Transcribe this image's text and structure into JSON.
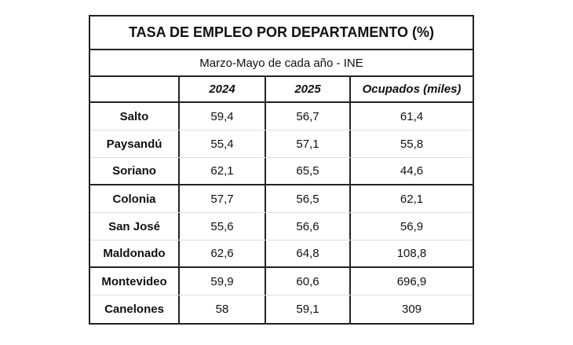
{
  "table": {
    "title": "TASA DE EMPLEO POR DEPARTAMENTO (%)",
    "subtitle": "Marzo-Mayo de cada año - INE",
    "headers": [
      "",
      "2024",
      "2025",
      "Ocupados (miles)"
    ],
    "rows": [
      {
        "dept": "Salto",
        "y2024": "59,4",
        "y2025": "56,7",
        "ocupados": "61,4"
      },
      {
        "dept": "Paysandú",
        "y2024": "55,4",
        "y2025": "57,1",
        "ocupados": "55,8"
      },
      {
        "dept": "Soriano",
        "y2024": "62,1",
        "y2025": "65,5",
        "ocupados": "44,6"
      },
      {
        "dept": "Colonia",
        "y2024": "57,7",
        "y2025": "56,5",
        "ocupados": "62,1"
      },
      {
        "dept": "San José",
        "y2024": "55,6",
        "y2025": "56,6",
        "ocupados": "56,9"
      },
      {
        "dept": "Maldonado",
        "y2024": "62,6",
        "y2025": "64,8",
        "ocupados": "108,8"
      },
      {
        "dept": "Montevideo",
        "y2024": "59,9",
        "y2025": "60,6",
        "ocupados": "696,9"
      },
      {
        "dept": "Canelones",
        "y2024": "58",
        "y2025": "59,1",
        "ocupados": "309"
      }
    ]
  }
}
